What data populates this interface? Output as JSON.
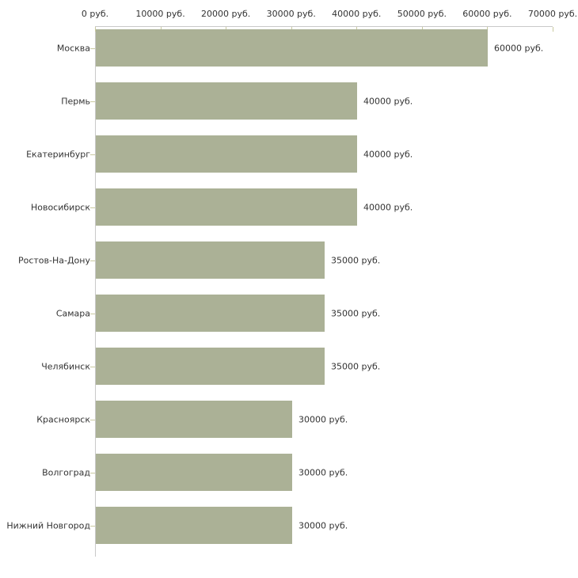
{
  "chart_data": {
    "type": "bar",
    "orientation": "horizontal",
    "title": "",
    "xlabel": "",
    "ylabel": "",
    "unit": "руб.",
    "categories": [
      "Москва",
      "Пермь",
      "Екатеринбург",
      "Новосибирск",
      "Ростов-На-Дону",
      "Самара",
      "Челябинск",
      "Красноярск",
      "Волгоград",
      "Нижний Новгород"
    ],
    "values": [
      60000,
      40000,
      40000,
      40000,
      35000,
      35000,
      35000,
      30000,
      30000,
      30000
    ],
    "bar_labels": [
      "60000 руб.",
      "40000 руб.",
      "40000 руб.",
      "40000 руб.",
      "35000 руб.",
      "35000 руб.",
      "35000 руб.",
      "30000 руб.",
      "30000 руб.",
      "30000 руб."
    ],
    "x_ticks": [
      0,
      10000,
      20000,
      30000,
      40000,
      50000,
      60000,
      70000
    ],
    "x_tick_labels": [
      "0 руб.",
      "10000 руб.",
      "20000 руб.",
      "30000 руб.",
      "40000 руб.",
      "50000 руб.",
      "60000 руб.",
      "70000 руб."
    ],
    "xlim": [
      0,
      70000
    ],
    "grid": false,
    "legend": false
  },
  "colors": {
    "bar": "#abb196",
    "axis_line": "#c9c9c9",
    "tick_mark": "#c9c9a0",
    "text": "#333333",
    "background": "#ffffff"
  }
}
